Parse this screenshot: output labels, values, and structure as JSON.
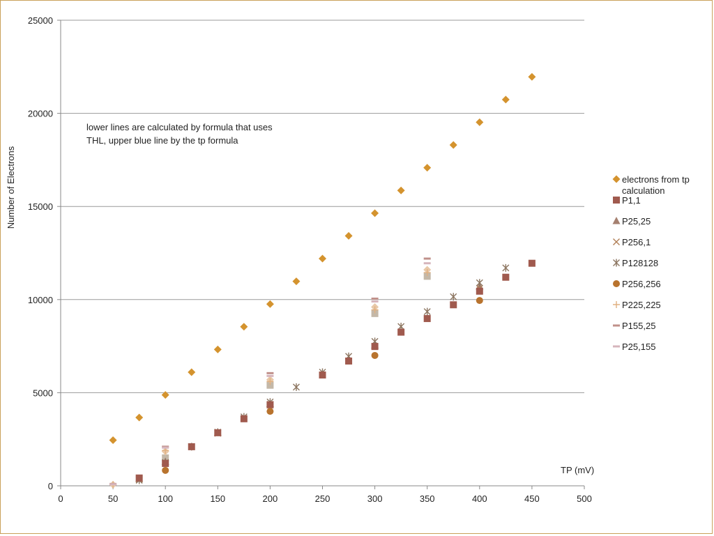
{
  "chart_data": {
    "type": "scatter",
    "title": "",
    "xlabel": "TP (mV)",
    "ylabel": "Number of Electrons",
    "xlim": [
      0,
      500
    ],
    "ylim": [
      0,
      25000
    ],
    "x_ticks": [
      0,
      50,
      100,
      150,
      200,
      250,
      300,
      350,
      400,
      450,
      500
    ],
    "y_ticks": [
      0,
      5000,
      10000,
      15000,
      20000,
      25000
    ],
    "grid": "horizontal",
    "legend_position": "right",
    "annotation": [
      "lower lines are calculated by formula that uses",
      "THL, upper blue line by the tp formula"
    ],
    "series": [
      {
        "name": "electrons from tp calculation",
        "label_lines": [
          "electrons from tp",
          "calculation"
        ],
        "marker": "diamond",
        "color": "#d4932e",
        "x": [
          50,
          75,
          100,
          125,
          150,
          175,
          200,
          225,
          250,
          275,
          300,
          325,
          350,
          375,
          400,
          425,
          450
        ],
        "y": [
          2450,
          3670,
          4880,
          6100,
          7320,
          8540,
          9760,
          10980,
          12200,
          13420,
          14640,
          15860,
          17080,
          18300,
          19520,
          20740,
          21960
        ]
      },
      {
        "name": "P1,1",
        "marker": "square",
        "color": "#a05a4e",
        "x": [
          75,
          100,
          125,
          150,
          175,
          200,
          250,
          275,
          300,
          325,
          350,
          375,
          400,
          425,
          450
        ],
        "y": [
          420,
          1200,
          2100,
          2850,
          3600,
          4350,
          5950,
          6700,
          7480,
          8250,
          8980,
          9720,
          10450,
          11200,
          11950
        ]
      },
      {
        "name": "P25,25",
        "marker": "triangle",
        "color": "#a58070",
        "x": [
          75,
          100,
          150,
          200,
          300,
          400
        ],
        "y": [
          380,
          1300,
          2850,
          4400,
          7550,
          10700
        ]
      },
      {
        "name": "P256,1",
        "marker": "x",
        "color": "#b07e55",
        "x": [
          75,
          100,
          150,
          200,
          300,
          400
        ],
        "y": [
          350,
          1250,
          2820,
          4380,
          7500,
          10600
        ]
      },
      {
        "name": "P128128",
        "marker": "star",
        "color": "#8c7560",
        "x": [
          75,
          100,
          125,
          150,
          175,
          200,
          225,
          250,
          275,
          300,
          325,
          350,
          375,
          400,
          425
        ],
        "y": [
          300,
          1250,
          2100,
          2880,
          3700,
          4500,
          5300,
          6100,
          6950,
          7750,
          8550,
          9350,
          10150,
          10900,
          11700
        ]
      },
      {
        "name": "P256,256",
        "marker": "circle",
        "color": "#b8732e",
        "x": [
          100,
          200,
          300,
          400
        ],
        "y": [
          830,
          4000,
          7000,
          9950
        ]
      },
      {
        "name": "P225,225",
        "marker": "plus",
        "color": "#e0b080",
        "x": [
          50,
          100,
          200,
          300,
          350
        ],
        "y": [
          60,
          1900,
          5600,
          9450,
          11450
        ]
      },
      {
        "name": "P155,25",
        "marker": "dash",
        "color": "#c0908a",
        "x": [
          50,
          100,
          200,
          300,
          350
        ],
        "y": [
          100,
          2100,
          6050,
          10050,
          12200
        ]
      },
      {
        "name": "P25,155",
        "marker": "dash",
        "color": "#d6b5bc",
        "x": [
          50,
          100,
          200,
          300,
          350
        ],
        "y": [
          80,
          2050,
          5900,
          9900,
          11950
        ]
      },
      {
        "name": "",
        "marker": "square",
        "color": "#c4b8a8",
        "x": [
          100,
          200,
          300,
          350
        ],
        "y": [
          1500,
          5400,
          9250,
          11250
        ]
      },
      {
        "name": "",
        "marker": "diamond",
        "color": "#e8c8a8",
        "x": [
          50,
          100,
          200,
          300,
          350
        ],
        "y": [
          60,
          1850,
          5700,
          9600,
          11600
        ]
      }
    ]
  }
}
